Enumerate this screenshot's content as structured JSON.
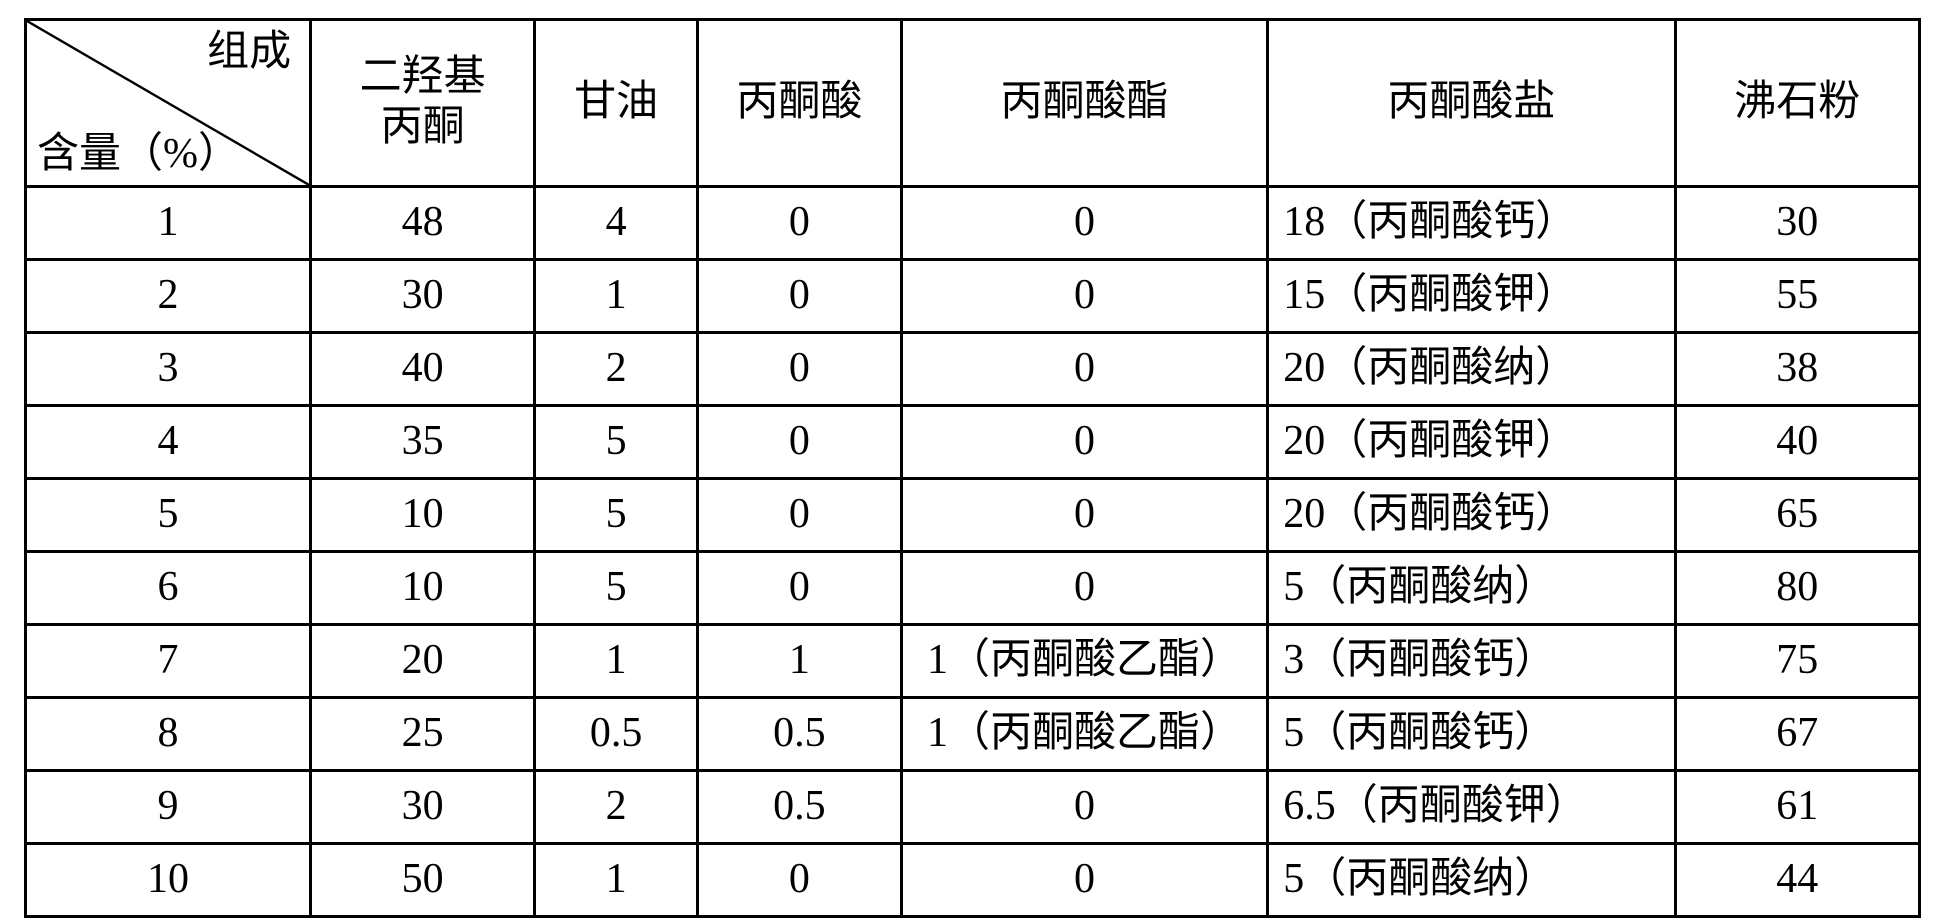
{
  "table": {
    "text_color": "#000000",
    "border_color": "#000000",
    "background_color": "#ffffff",
    "font_family": "SimSun",
    "font_size_pt": 32,
    "header": {
      "diag_top": "组成",
      "diag_bottom": "含量（%）",
      "col1_line1": "二羟基",
      "col1_line2": "丙酮",
      "col2": "甘油",
      "col3": "丙酮酸",
      "col4": "丙酮酸酯",
      "col5": "丙酮酸盐",
      "col6": "沸石粉"
    },
    "rows": [
      {
        "idx": "1",
        "c1": "48",
        "c2": "4",
        "c3": "0",
        "c4": "0",
        "c5": "18（丙酮酸钙）",
        "c6": "30"
      },
      {
        "idx": "2",
        "c1": "30",
        "c2": "1",
        "c3": "0",
        "c4": "0",
        "c5": "15（丙酮酸钾）",
        "c6": "55"
      },
      {
        "idx": "3",
        "c1": "40",
        "c2": "2",
        "c3": "0",
        "c4": "0",
        "c5": "20（丙酮酸纳）",
        "c6": "38"
      },
      {
        "idx": "4",
        "c1": "35",
        "c2": "5",
        "c3": "0",
        "c4": "0",
        "c5": "20（丙酮酸钾）",
        "c6": "40"
      },
      {
        "idx": "5",
        "c1": "10",
        "c2": "5",
        "c3": "0",
        "c4": "0",
        "c5": "20（丙酮酸钙）",
        "c6": "65"
      },
      {
        "idx": "6",
        "c1": "10",
        "c2": "5",
        "c3": "0",
        "c4": "0",
        "c5": "5（丙酮酸纳）",
        "c6": "80"
      },
      {
        "idx": "7",
        "c1": "20",
        "c2": "1",
        "c3": "1",
        "c4": "1（丙酮酸乙酯）",
        "c5": "3（丙酮酸钙）",
        "c6": "75"
      },
      {
        "idx": "8",
        "c1": "25",
        "c2": "0.5",
        "c3": "0.5",
        "c4": "1（丙酮酸乙酯）",
        "c5": "5（丙酮酸钙）",
        "c6": "67"
      },
      {
        "idx": "9",
        "c1": "30",
        "c2": "2",
        "c3": "0.5",
        "c4": "0",
        "c5": "6.5（丙酮酸钾）",
        "c6": "61"
      },
      {
        "idx": "10",
        "c1": "50",
        "c2": "1",
        "c3": "0",
        "c4": "0",
        "c5": "5（丙酮酸纳）",
        "c6": "44"
      }
    ]
  }
}
